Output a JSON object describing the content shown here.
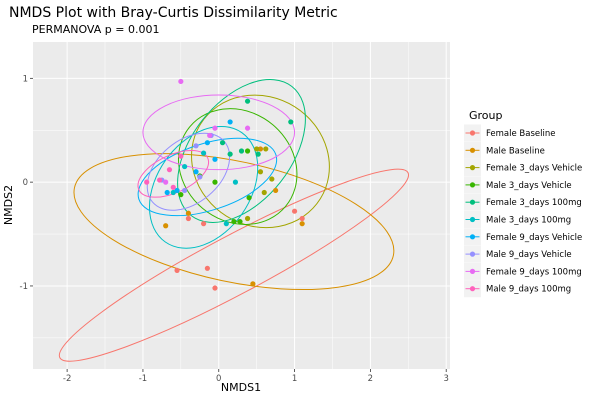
{
  "chart_data": {
    "type": "scatter",
    "title": "NMDS Plot with Bray-Curtis Dissimilarity Metric",
    "subtitle": "PERMANOVA p = 0.001",
    "xlabel": "NMDS1",
    "ylabel": "NMDS2",
    "xlim": [
      -2.45,
      3.05
    ],
    "ylim": [
      -1.8,
      1.35
    ],
    "x_ticks": [
      -2,
      -1,
      0,
      1,
      2,
      3
    ],
    "y_ticks": [
      -1,
      0,
      1
    ],
    "x_tick_labels": [
      "-2",
      "-1",
      "0",
      "1",
      "2",
      "3"
    ],
    "y_tick_labels": [
      "-1",
      "0",
      "1"
    ],
    "grid": true,
    "legend_title": "Group",
    "legend_position": "right",
    "series": [
      {
        "name": "Female Baseline",
        "color": "#F8766D",
        "points": [
          [
            -0.55,
            -0.85
          ],
          [
            -0.15,
            -0.83
          ],
          [
            -0.05,
            -1.02
          ],
          [
            -0.2,
            -0.4
          ],
          [
            -0.4,
            -0.35
          ],
          [
            1.0,
            -0.28
          ],
          [
            1.1,
            -0.35
          ]
        ],
        "ellipse": {
          "cx": 0.2,
          "cy": -0.8,
          "rx": 2.6,
          "ry": 0.28,
          "angle": 28
        }
      },
      {
        "name": "Male Baseline",
        "color": "#D89000",
        "points": [
          [
            -0.7,
            -0.42
          ],
          [
            -0.4,
            -0.3
          ],
          [
            0.45,
            -0.98
          ],
          [
            1.1,
            -0.4
          ],
          [
            0.55,
            0.32
          ],
          [
            0.75,
            -0.08
          ]
        ],
        "ellipse": {
          "cx": 0.2,
          "cy": -0.38,
          "rx": 2.15,
          "ry": 0.58,
          "angle": -12
        }
      },
      {
        "name": "Female 3_days Vehicle",
        "color": "#A3A500",
        "points": [
          [
            0.5,
            0.32
          ],
          [
            0.62,
            0.32
          ],
          [
            0.38,
            -0.35
          ],
          [
            0.55,
            0.1
          ],
          [
            0.7,
            0.03
          ],
          [
            0.6,
            -0.1
          ]
        ],
        "ellipse": {
          "cx": 0.55,
          "cy": 0.2,
          "rx": 0.85,
          "ry": 0.68,
          "angle": 58
        }
      },
      {
        "name": "Male 3_days Vehicle",
        "color": "#39B600",
        "points": [
          [
            0.28,
            -0.38
          ],
          [
            0.4,
            -0.15
          ],
          [
            0.38,
            0.3
          ],
          [
            -0.05,
            0.0
          ],
          [
            -0.25,
            0.06
          ],
          [
            -0.5,
            -0.12
          ],
          [
            0.2,
            -0.38
          ]
        ],
        "ellipse": {
          "cx": 0.25,
          "cy": 0.15,
          "rx": 0.72,
          "ry": 0.6,
          "angle": 50
        }
      },
      {
        "name": "Female 3_days 100mg",
        "color": "#00BF7D",
        "points": [
          [
            0.38,
            0.78
          ],
          [
            0.95,
            0.58
          ],
          [
            0.52,
            0.27
          ],
          [
            0.3,
            0.3
          ],
          [
            0.15,
            0.27
          ],
          [
            0.05,
            0.38
          ]
        ],
        "ellipse": {
          "cx": 0.3,
          "cy": 0.3,
          "rx": 1.08,
          "ry": 0.48,
          "angle": 52
        }
      },
      {
        "name": "Male 3_days 100mg",
        "color": "#00BFC4",
        "points": [
          [
            0.22,
            0.0
          ],
          [
            0.1,
            -0.4
          ],
          [
            -0.2,
            0.28
          ],
          [
            -0.45,
            0.15
          ],
          [
            -0.6,
            -0.1
          ]
        ],
        "ellipse": {
          "cx": -0.2,
          "cy": -0.05,
          "rx": 0.88,
          "ry": 0.45,
          "angle": 55
        }
      },
      {
        "name": "Female 9_days Vehicle",
        "color": "#00B0F6",
        "points": [
          [
            0.15,
            0.58
          ],
          [
            -0.05,
            0.22
          ],
          [
            -0.15,
            0.38
          ],
          [
            -0.3,
            0.1
          ],
          [
            -0.55,
            -0.08
          ],
          [
            -0.68,
            -0.1
          ]
        ],
        "ellipse": {
          "cx": -0.15,
          "cy": 0.05,
          "rx": 0.95,
          "ry": 0.32,
          "angle": 18
        }
      },
      {
        "name": "Male 9_days Vehicle",
        "color": "#9590FF",
        "points": [
          [
            -0.45,
            -0.08
          ],
          [
            -0.25,
            0.05
          ],
          [
            -0.3,
            0.35
          ],
          [
            -0.75,
            0.02
          ],
          [
            -0.1,
            0.45
          ]
        ],
        "ellipse": {
          "cx": -0.4,
          "cy": 0.1,
          "rx": 0.62,
          "ry": 0.3,
          "angle": 40
        }
      },
      {
        "name": "Female 9_days 100mg",
        "color": "#E76BF3",
        "points": [
          [
            -0.5,
            0.97
          ],
          [
            0.38,
            0.52
          ],
          [
            -0.05,
            0.52
          ],
          [
            -0.12,
            0.45
          ],
          [
            -0.7,
            0.0
          ]
        ],
        "ellipse": {
          "cx": 0.0,
          "cy": 0.48,
          "rx": 1.0,
          "ry": 0.36,
          "angle": 0
        }
      },
      {
        "name": "Male 9_days 100mg",
        "color": "#FF62BC",
        "points": [
          [
            -0.95,
            0.0
          ],
          [
            -0.5,
            0.25
          ],
          [
            -0.6,
            -0.05
          ],
          [
            -0.78,
            0.02
          ],
          [
            -0.65,
            0.12
          ]
        ],
        "ellipse": {
          "cx": -0.6,
          "cy": 0.08,
          "rx": 0.5,
          "ry": 0.18,
          "angle": 25
        }
      }
    ]
  }
}
